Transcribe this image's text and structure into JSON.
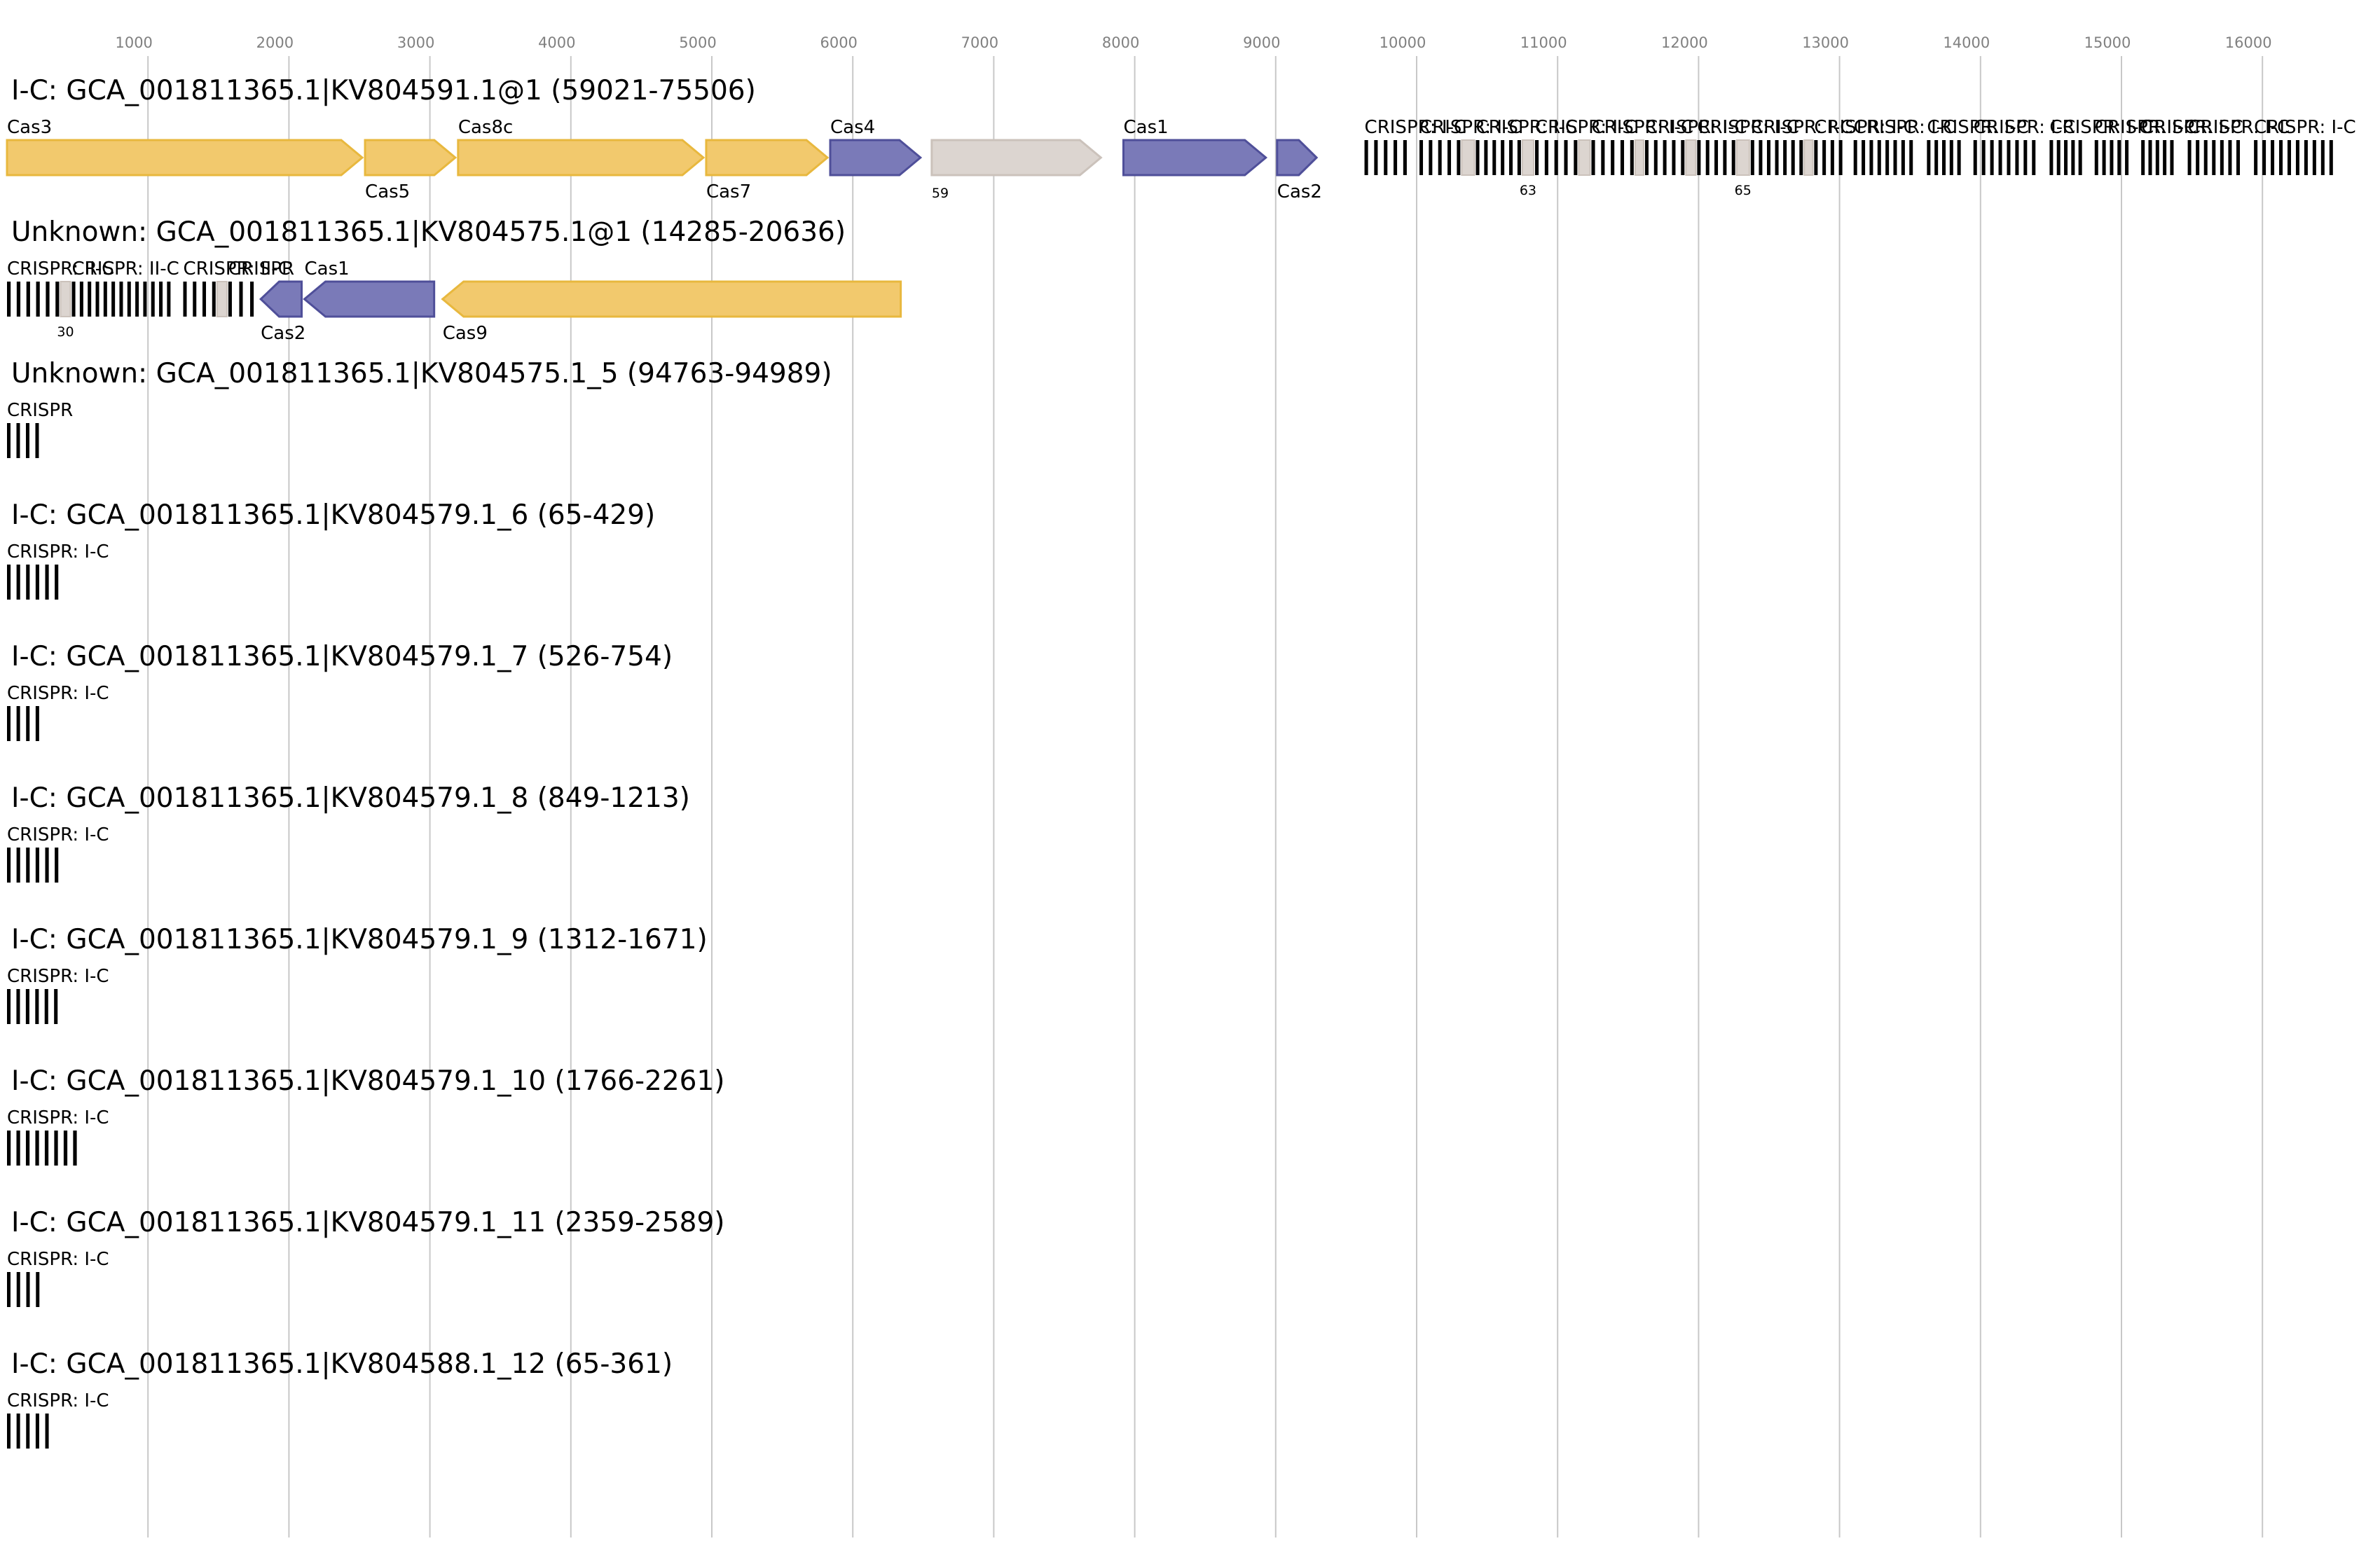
{
  "axis": {
    "ticks": [
      "1000",
      "2000",
      "3000",
      "4000",
      "5000",
      "6000",
      "7000",
      "8000",
      "9000",
      "10000",
      "11000",
      "12000",
      "13000",
      "14000",
      "15000",
      "16000"
    ]
  },
  "colors": {
    "yellow": "#f2c96d",
    "yellow_stroke": "#e8b83e",
    "blue": "#7a7ab8",
    "blue_stroke": "#4f4f99",
    "gray": "#dcd5d0",
    "gray_stroke": "#cbc2bb",
    "repeat": "#000000"
  },
  "tracks": [
    {
      "title": "I-C: GCA_001811365.1|KV804591.1@1 (59021-75506)",
      "genes": [
        {
          "label": "Cas3",
          "start": 0,
          "end": 2540,
          "strand": "+",
          "color": "yellow",
          "label_pos": "top"
        },
        {
          "label": "Cas5",
          "start": 2540,
          "end": 3200,
          "strand": "+",
          "color": "yellow",
          "label_pos": "bottom"
        },
        {
          "label": "Cas8c",
          "start": 3200,
          "end": 4960,
          "strand": "+",
          "color": "yellow",
          "label_pos": "top"
        },
        {
          "label": "Cas7",
          "start": 4960,
          "end": 5840,
          "strand": "+",
          "color": "yellow",
          "label_pos": "bottom"
        },
        {
          "label": "Cas4",
          "start": 5840,
          "end": 6500,
          "strand": "+",
          "color": "blue",
          "label_pos": "top"
        },
        {
          "label": "59",
          "start": 6560,
          "end": 7780,
          "strand": "+",
          "color": "gray",
          "label_pos": "bottom",
          "small": true
        },
        {
          "label": "Cas1",
          "start": 7920,
          "end": 8950,
          "strand": "+",
          "color": "blue",
          "label_pos": "top"
        },
        {
          "label": "Cas2",
          "start": 9010,
          "end": 9310,
          "strand": "+",
          "color": "blue",
          "label_pos": "bottom"
        }
      ],
      "crisprs": [
        {
          "label": "CRISPR: I-C",
          "start": 9630,
          "end": 9930,
          "n": 5
        },
        {
          "label": "CRISPR: I-C",
          "start": 10020,
          "end": 10310,
          "n": 5
        },
        {
          "label": "CRISPR: I-C",
          "start": 10420,
          "end": 10740,
          "n": 6
        },
        {
          "label": "CRISPR: I-C",
          "start": 10840,
          "end": 11140,
          "n": 5
        },
        {
          "label": "CRISPR: I-C",
          "start": 11240,
          "end": 11540,
          "n": 5
        },
        {
          "label": "CRISPR: I-C",
          "start": 11620,
          "end": 11900,
          "n": 5
        },
        {
          "label": "CRISPR: I-C",
          "start": 11990,
          "end": 12260,
          "n": 5
        },
        {
          "label": "CRISPR: I-C",
          "start": 12370,
          "end": 12740,
          "n": 7
        },
        {
          "label": "CRISPR: I-C",
          "start": 12820,
          "end": 13020,
          "n": 4
        },
        {
          "label": "CRISPR: I-C",
          "start": 13100,
          "end": 13520,
          "n": 8
        },
        {
          "label": "CRISPR: I-C",
          "start": 13620,
          "end": 13860,
          "n": 5
        },
        {
          "label": "CRISPR: I-C",
          "start": 13950,
          "end": 14390,
          "n": 8
        },
        {
          "label": "CRISPR: I-C",
          "start": 14490,
          "end": 14720,
          "n": 5
        },
        {
          "label": "CRISPR: I-C",
          "start": 14810,
          "end": 15050,
          "n": 5
        },
        {
          "label": "CRISPR: I-C",
          "start": 15140,
          "end": 15370,
          "n": 5
        },
        {
          "label": "CRISPR: I-C",
          "start": 15470,
          "end": 15840,
          "n": 7
        },
        {
          "label": "CRISPR: I-C",
          "start": 15940,
          "end": 16500,
          "n": 10
        }
      ],
      "small_genes": [
        {
          "label": "",
          "start": 10310,
          "end": 10420
        },
        {
          "label": "63",
          "start": 10740,
          "end": 10840
        },
        {
          "label": "",
          "start": 11140,
          "end": 11240
        },
        {
          "label": "",
          "start": 11540,
          "end": 11620
        },
        {
          "label": "",
          "start": 11900,
          "end": 11990
        },
        {
          "label": "65",
          "start": 12260,
          "end": 12370
        },
        {
          "label": "",
          "start": 12740,
          "end": 12820
        }
      ]
    },
    {
      "title": "Unknown: GCA_001811365.1|KV804575.1@1 (14285-20636)",
      "genes": [
        {
          "label": "Cas2",
          "start": 1800,
          "end": 2110,
          "strand": "-",
          "color": "blue",
          "label_pos": "bottom"
        },
        {
          "label": "Cas1",
          "start": 2110,
          "end": 3050,
          "strand": "-",
          "color": "blue",
          "label_pos": "top"
        },
        {
          "label": "Cas9",
          "start": 3090,
          "end": 6360,
          "strand": "-",
          "color": "yellow",
          "label_pos": "bottom"
        }
      ],
      "crisprs": [
        {
          "label": "CRISPR: II-C",
          "start": 0,
          "end": 370,
          "n": 6
        },
        {
          "label": "CRISPR: II-C",
          "start": 460,
          "end": 1160,
          "n": 13
        },
        {
          "label": "CRISPR: II-C",
          "start": 1250,
          "end": 1480,
          "n": 4
        },
        {
          "label": "CRISPR",
          "start": 1570,
          "end": 1750,
          "n": 3
        }
      ],
      "small_genes": [
        {
          "label": "30",
          "start": 370,
          "end": 460
        },
        {
          "label": "",
          "start": 1480,
          "end": 1570
        }
      ]
    },
    {
      "title": "Unknown: GCA_001811365.1|KV804575.1_5 (94763-94989)",
      "genes": [],
      "crisprs": [
        {
          "label": "CRISPR",
          "start": 0,
          "end": 226,
          "n": 4
        }
      ],
      "small_genes": []
    },
    {
      "title": "I-C: GCA_001811365.1|KV804579.1_6 (65-429)",
      "genes": [],
      "crisprs": [
        {
          "label": "CRISPR: I-C",
          "start": 0,
          "end": 364,
          "n": 6
        }
      ],
      "small_genes": []
    },
    {
      "title": "I-C: GCA_001811365.1|KV804579.1_7 (526-754)",
      "genes": [],
      "crisprs": [
        {
          "label": "CRISPR: I-C",
          "start": 0,
          "end": 228,
          "n": 4
        }
      ],
      "small_genes": []
    },
    {
      "title": "I-C: GCA_001811365.1|KV804579.1_8 (849-1213)",
      "genes": [],
      "crisprs": [
        {
          "label": "CRISPR: I-C",
          "start": 0,
          "end": 364,
          "n": 6
        }
      ],
      "small_genes": []
    },
    {
      "title": "I-C: GCA_001811365.1|KV804579.1_9 (1312-1671)",
      "genes": [],
      "crisprs": [
        {
          "label": "CRISPR: I-C",
          "start": 0,
          "end": 359,
          "n": 6
        }
      ],
      "small_genes": []
    },
    {
      "title": "I-C: GCA_001811365.1|KV804579.1_10 (1766-2261)",
      "genes": [],
      "crisprs": [
        {
          "label": "CRISPR: I-C",
          "start": 0,
          "end": 495,
          "n": 8
        }
      ],
      "small_genes": []
    },
    {
      "title": "I-C: GCA_001811365.1|KV804579.1_11 (2359-2589)",
      "genes": [],
      "crisprs": [
        {
          "label": "CRISPR: I-C",
          "start": 0,
          "end": 230,
          "n": 4
        }
      ],
      "small_genes": []
    },
    {
      "title": "I-C: GCA_001811365.1|KV804588.1_12 (65-361)",
      "genes": [],
      "crisprs": [
        {
          "label": "CRISPR: I-C",
          "start": 0,
          "end": 296,
          "n": 5
        }
      ],
      "small_genes": []
    }
  ]
}
